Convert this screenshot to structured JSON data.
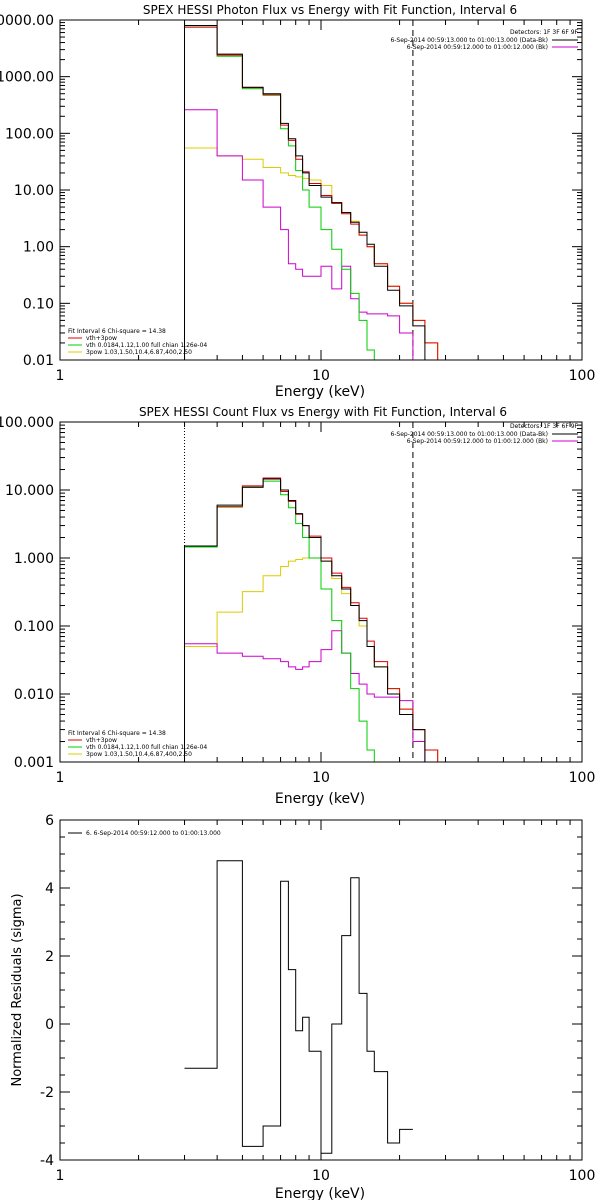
{
  "chart_data": [
    {
      "type": "line",
      "title": "SPEX HESSI Photon Flux vs Energy with Fit Function, Interval 6",
      "xlabel": "Energy (keV)",
      "ylabel": "",
      "xscale": "log",
      "yscale": "log",
      "xlim": [
        1,
        100
      ],
      "ylim": [
        0.01,
        10000
      ],
      "xticks": [
        1,
        10,
        100
      ],
      "xtick_labels": [
        "1",
        "10",
        "100"
      ],
      "yticks": [
        0.01,
        0.1,
        1,
        10,
        100,
        1000,
        10000
      ],
      "ytick_labels": [
        "0.01",
        "0.10",
        "1.00",
        "10.00",
        "100.00",
        "1000.00",
        "10000.00"
      ],
      "vlines": [
        {
          "x": 3,
          "style": "dotted"
        },
        {
          "x": 22.5,
          "style": "dashed"
        }
      ],
      "legend_top_right": {
        "header": "Detectors: 1F 3F 6F 9F",
        "entries": [
          {
            "label": "6-Sep-2014 00:59:13.000 to 01:00:13.000 (Data-Bk)",
            "color": "#000000"
          },
          {
            "label": "6-Sep-2014 00:59:12.000 to 01:00:12.000 (Bk)",
            "color": "#cc00cc"
          }
        ]
      },
      "legend_bottom_left": {
        "header": "Fit Interval 6   Chi-square = 14.38",
        "entries": [
          {
            "label": "vth+3pow",
            "color": "#dd0000"
          },
          {
            "label": "vth 0.0184,1.12,1.00  full chian 1.26e-04",
            "color": "#00cc00"
          },
          {
            "label": "3pow 1.03,1.50,10.4,6.87,400,2.50",
            "color": "#ddcc00"
          }
        ]
      },
      "edges": [
        3,
        4,
        5,
        6,
        7,
        7.5,
        8,
        8.5,
        9,
        10,
        11,
        12,
        13,
        14,
        15,
        16,
        18,
        20,
        22.5,
        25,
        28,
        32
      ],
      "series": [
        {
          "name": "Data-Bk",
          "color": "#000000",
          "values": [
            8000,
            2500,
            650,
            500,
            150,
            80,
            40,
            20,
            12,
            7.5,
            6.0,
            4.0,
            2.7,
            1.8,
            1.1,
            0.45,
            0.17,
            0.09,
            0.04,
            null,
            null
          ]
        },
        {
          "name": "vth+3pow",
          "color": "#dd0000",
          "values": [
            7500,
            2400,
            640,
            480,
            140,
            75,
            35,
            21,
            13,
            8.0,
            5.8,
            3.8,
            2.5,
            1.6,
            1.0,
            0.5,
            0.2,
            0.1,
            0.05,
            0.02,
            0.01
          ]
        },
        {
          "name": "vth",
          "color": "#00cc00",
          "values": [
            7500,
            2300,
            610,
            470,
            120,
            60,
            22,
            10,
            5.0,
            2.0,
            0.9,
            0.4,
            0.15,
            0.05,
            0.015,
            null,
            null,
            null,
            null,
            null,
            null
          ]
        },
        {
          "name": "3pow",
          "color": "#ddcc00",
          "values": [
            55,
            40,
            35,
            25,
            20,
            18,
            17,
            16,
            15,
            12,
            6.0,
            4.0,
            2.8,
            1.6,
            1.0,
            0.5,
            0.2,
            0.1,
            0.05,
            0.02,
            0.01
          ]
        },
        {
          "name": "Bk",
          "color": "#cc00cc",
          "values": [
            260,
            40,
            15,
            5.0,
            2.0,
            0.5,
            0.4,
            0.3,
            0.3,
            0.45,
            0.18,
            0.45,
            0.12,
            0.07,
            0.065,
            0.065,
            0.06,
            0.03,
            0.01,
            null,
            null
          ]
        }
      ]
    },
    {
      "type": "line",
      "title": "SPEX HESSI Count Flux vs Energy with Fit Function, Interval 6",
      "xlabel": "Energy (keV)",
      "ylabel": "",
      "xscale": "log",
      "yscale": "log",
      "xlim": [
        1,
        100
      ],
      "ylim": [
        0.001,
        100
      ],
      "xticks": [
        1,
        10,
        100
      ],
      "xtick_labels": [
        "1",
        "10",
        "100"
      ],
      "yticks": [
        0.001,
        0.01,
        0.1,
        1,
        10,
        100
      ],
      "ytick_labels": [
        "0.001",
        "0.010",
        "0.100",
        "1.000",
        "10.000",
        "100.000"
      ],
      "vlines": [
        {
          "x": 3,
          "style": "dotted"
        },
        {
          "x": 22.5,
          "style": "dashed"
        }
      ],
      "legend_top_right": {
        "header": "Detectors: 1F 3F 6F 9F",
        "entries": [
          {
            "label": "6-Sep-2014 00:59:13.000 to 01:00:13.000 (Data-Bk)",
            "color": "#000000"
          },
          {
            "label": "6-Sep-2014 00:59:12.000 to 01:00:12.000 (Bk)",
            "color": "#cc00cc"
          }
        ]
      },
      "legend_bottom_left": {
        "header": "Fit Interval 6   Chi-square = 14.38",
        "entries": [
          {
            "label": "vth+3pow",
            "color": "#dd0000"
          },
          {
            "label": "vth 0.0184,1.12,1.00  full chian 1.26e-04",
            "color": "#00cc00"
          },
          {
            "label": "3pow 1.03,1.50,10.4,6.87,400,2.50",
            "color": "#ddcc00"
          }
        ]
      },
      "edges": [
        3,
        4,
        5,
        6,
        7,
        7.5,
        8,
        8.5,
        9,
        10,
        11,
        12,
        13,
        14,
        15,
        16,
        18,
        20,
        22.5,
        25,
        28,
        32
      ],
      "series": [
        {
          "name": "Data-Bk",
          "color": "#000000",
          "values": [
            1.5,
            6.0,
            11,
            14.5,
            10,
            7.0,
            4.5,
            3.0,
            2.0,
            0.9,
            0.55,
            0.35,
            0.2,
            0.12,
            0.05,
            0.025,
            0.01,
            0.005,
            0.003,
            null,
            null
          ]
        },
        {
          "name": "vth+3pow",
          "color": "#dd0000",
          "values": [
            1.5,
            5.7,
            11.5,
            15,
            9.5,
            6.8,
            4.4,
            3.0,
            2.1,
            1.0,
            0.6,
            0.37,
            0.22,
            0.13,
            0.06,
            0.03,
            0.012,
            0.006,
            0.003,
            0.0015,
            0.001
          ]
        },
        {
          "name": "vth",
          "color": "#00cc00",
          "values": [
            1.45,
            5.6,
            11,
            13.5,
            8.5,
            5.5,
            3.2,
            2.0,
            1.0,
            0.35,
            0.12,
            0.04,
            0.012,
            0.004,
            0.0015,
            null,
            null,
            null,
            null,
            null,
            null
          ]
        },
        {
          "name": "3pow",
          "color": "#ddcc00",
          "values": [
            0.05,
            0.16,
            0.32,
            0.55,
            0.75,
            0.9,
            0.95,
            1.0,
            1.0,
            0.9,
            0.5,
            0.3,
            0.2,
            0.1,
            0.05,
            0.025,
            0.012,
            0.006,
            0.003,
            0.0015,
            0.001
          ]
        },
        {
          "name": "Bk",
          "color": "#cc00cc",
          "values": [
            0.055,
            0.04,
            0.036,
            0.033,
            0.03,
            0.025,
            0.023,
            0.025,
            0.03,
            0.045,
            0.085,
            0.04,
            0.02,
            0.014,
            0.01,
            0.009,
            0.009,
            0.008,
            0.002,
            null,
            null
          ]
        }
      ]
    },
    {
      "type": "line",
      "title": "",
      "xlabel": "Energy (keV)",
      "ylabel": "Normalized Residuals (sigma)",
      "xscale": "log",
      "yscale": "linear",
      "xlim": [
        1,
        100
      ],
      "ylim": [
        -4,
        6
      ],
      "xticks": [
        1,
        10,
        100
      ],
      "xtick_labels": [
        "1",
        "10",
        "100"
      ],
      "yticks": [
        -4,
        -2,
        0,
        2,
        4,
        6
      ],
      "ytick_labels": [
        "-4",
        "-2",
        "0",
        "2",
        "4",
        "6"
      ],
      "legend_top_left": {
        "entries": [
          {
            "label": "6.  6-Sep-2014 00:59:12.000 to 01:00:13.000",
            "color": "#000000"
          }
        ]
      },
      "edges": [
        3,
        4,
        5,
        6,
        7,
        7.5,
        8,
        8.5,
        9,
        10,
        11,
        12,
        13,
        14,
        15,
        16,
        18,
        20,
        22.5
      ],
      "series": [
        {
          "name": "",
          "color": "#000000",
          "values": [
            -1.3,
            4.8,
            -3.6,
            -3.0,
            4.2,
            1.6,
            -0.2,
            0.2,
            -0.8,
            -3.8,
            0.0,
            2.6,
            4.3,
            0.9,
            -0.8,
            -1.4,
            -3.5,
            -3.1
          ]
        }
      ]
    }
  ]
}
